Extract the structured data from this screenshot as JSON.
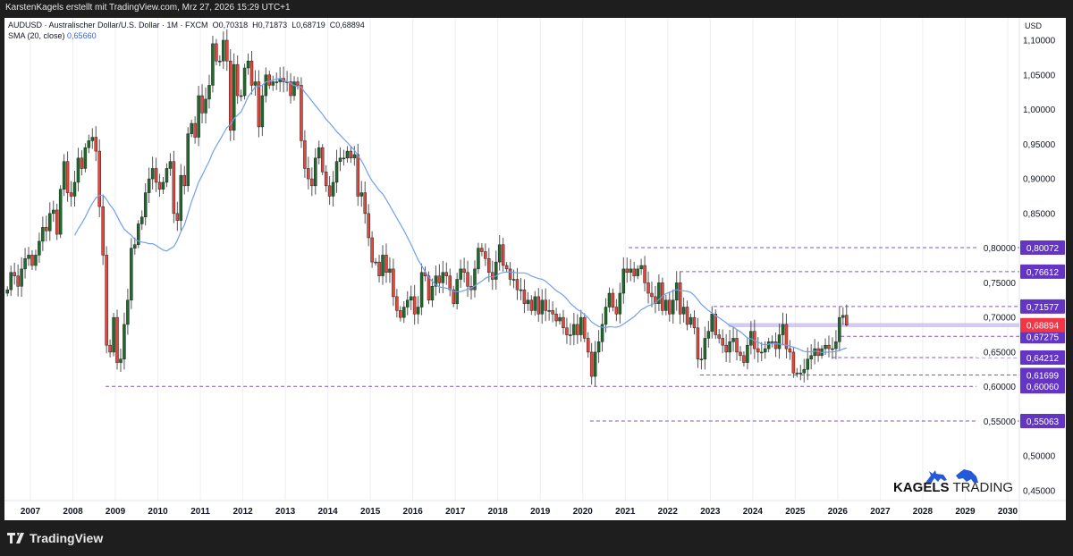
{
  "header": {
    "attribution": "KarstenKagels erstellt mit TradingView.com, Mrz 27, 2026 15:29 UTC+1"
  },
  "legend": {
    "symbol": "AUDUSD · Australischer Dollar/U.S. Dollar · 1M · FXCM",
    "open": "O0,70318",
    "high": "H0,71873",
    "low": "L0,68719",
    "close": "C0,68894",
    "sma_label": "SMA (20, close)",
    "sma_value": "0,65660"
  },
  "footer": {
    "brand": "TradingView",
    "icon": "tradingview-logo-icon"
  },
  "logo": {
    "word1": "KAGELS",
    "word2": "TRADING",
    "icons": [
      "bull-icon",
      "bear-icon"
    ]
  },
  "colors": {
    "up": "#1f6b2c",
    "down": "#e5463c",
    "sma": "#6fa0f2",
    "level": "#6434c4",
    "current": "#f23645",
    "band": "#c9b8ec"
  },
  "chart_data": {
    "type": "candlestick",
    "currency_label": "USD",
    "interval": "1M",
    "start_month": "2006-06",
    "monthly_closes": [
      0.74,
      0.765,
      0.76,
      0.745,
      0.77,
      0.785,
      0.79,
      0.775,
      0.79,
      0.81,
      0.83,
      0.825,
      0.85,
      0.855,
      0.82,
      0.885,
      0.925,
      0.88,
      0.875,
      0.895,
      0.93,
      0.915,
      0.945,
      0.955,
      0.96,
      0.94,
      0.86,
      0.79,
      0.66,
      0.65,
      0.7,
      0.635,
      0.64,
      0.69,
      0.725,
      0.8,
      0.805,
      0.835,
      0.845,
      0.88,
      0.9,
      0.915,
      0.895,
      0.885,
      0.895,
      0.915,
      0.925,
      0.85,
      0.84,
      0.905,
      0.89,
      0.965,
      0.98,
      0.96,
      1.02,
      0.995,
      1.015,
      1.035,
      1.095,
      1.07,
      1.07,
      1.1,
      1.07,
      0.97,
      1.065,
      1.02,
      1.02,
      1.06,
      1.07,
      1.035,
      1.04,
      0.975,
      1.02,
      1.05,
      1.035,
      1.04,
      1.04,
      1.045,
      1.04,
      1.04,
      1.02,
      1.04,
      1.035,
      0.955,
      0.915,
      0.9,
      0.89,
      0.93,
      0.945,
      0.91,
      0.89,
      0.875,
      0.895,
      0.925,
      0.93,
      0.93,
      0.94,
      0.93,
      0.935,
      0.875,
      0.88,
      0.85,
      0.815,
      0.78,
      0.78,
      0.76,
      0.79,
      0.765,
      0.77,
      0.73,
      0.71,
      0.7,
      0.715,
      0.725,
      0.73,
      0.705,
      0.715,
      0.765,
      0.76,
      0.725,
      0.745,
      0.76,
      0.75,
      0.765,
      0.76,
      0.74,
      0.72,
      0.755,
      0.77,
      0.765,
      0.745,
      0.74,
      0.77,
      0.8,
      0.795,
      0.785,
      0.765,
      0.755,
      0.78,
      0.805,
      0.775,
      0.77,
      0.755,
      0.755,
      0.74,
      0.74,
      0.72,
      0.725,
      0.71,
      0.73,
      0.705,
      0.725,
      0.71,
      0.71,
      0.705,
      0.695,
      0.7,
      0.685,
      0.675,
      0.675,
      0.69,
      0.675,
      0.7,
      0.67,
      0.65,
      0.615,
      0.65,
      0.665,
      0.69,
      0.715,
      0.735,
      0.715,
      0.705,
      0.735,
      0.77,
      0.765,
      0.77,
      0.76,
      0.77,
      0.775,
      0.75,
      0.735,
      0.73,
      0.72,
      0.75,
      0.71,
      0.725,
      0.705,
      0.725,
      0.75,
      0.705,
      0.715,
      0.69,
      0.7,
      0.685,
      0.64,
      0.64,
      0.67,
      0.68,
      0.705,
      0.675,
      0.67,
      0.66,
      0.65,
      0.665,
      0.67,
      0.65,
      0.645,
      0.635,
      0.66,
      0.68,
      0.655,
      0.65,
      0.65,
      0.655,
      0.665,
      0.665,
      0.655,
      0.675,
      0.69,
      0.655,
      0.65,
      0.62,
      0.62,
      0.62,
      0.625,
      0.64,
      0.645,
      0.655,
      0.645,
      0.655,
      0.66,
      0.655,
      0.655,
      0.665,
      0.7,
      0.703,
      0.68894
    ],
    "last_candle": {
      "open": 0.70318,
      "high": 0.71873,
      "low": 0.68719,
      "close": 0.68894
    },
    "sma": {
      "period": 20,
      "source": "close",
      "last_value": 0.6566
    },
    "x_ticks": [
      "2007",
      "2008",
      "2009",
      "2010",
      "2011",
      "2012",
      "2013",
      "2014",
      "2015",
      "2016",
      "2017",
      "2018",
      "2019",
      "2020",
      "2021",
      "2022",
      "2023",
      "2024",
      "2025",
      "2026",
      "2027",
      "2028",
      "2029",
      "2030"
    ],
    "x_range": [
      2006.4,
      2030.3
    ],
    "y_ticks": [
      "1,10000",
      "1,05000",
      "1,00000",
      "0,95000",
      "0,90000",
      "0,85000",
      "0,80000",
      "0,75000",
      "0,70000",
      "0,65000",
      "0,60000",
      "0,55000",
      "0,50000",
      "0,45000"
    ],
    "y_range": [
      0.425,
      1.125
    ],
    "grid": "vertical",
    "levels": [
      {
        "price": 0.80072,
        "label": "0,80072",
        "from": 2021.08
      },
      {
        "price": 0.76612,
        "label": "0,76612",
        "from": 2022.28
      },
      {
        "price": 0.71577,
        "label": "0,71577",
        "from": 2023.08
      },
      {
        "price": 0.67275,
        "label": "0,67275",
        "from": 2026.07
      },
      {
        "price": 0.64212,
        "label": "0,64212",
        "from": 2025.86
      },
      {
        "price": 0.61699,
        "label": "0,61699",
        "from": 2022.76
      },
      {
        "price": 0.6006,
        "label": "0,60060",
        "from": 2008.77
      },
      {
        "price": 0.55063,
        "label": "0,55063",
        "from": 2020.17
      }
    ],
    "band": {
      "price": 0.68894,
      "from": 2023.43,
      "half_width": 0.003
    },
    "current_price": {
      "price": 0.68894,
      "label": "0,68894"
    }
  }
}
